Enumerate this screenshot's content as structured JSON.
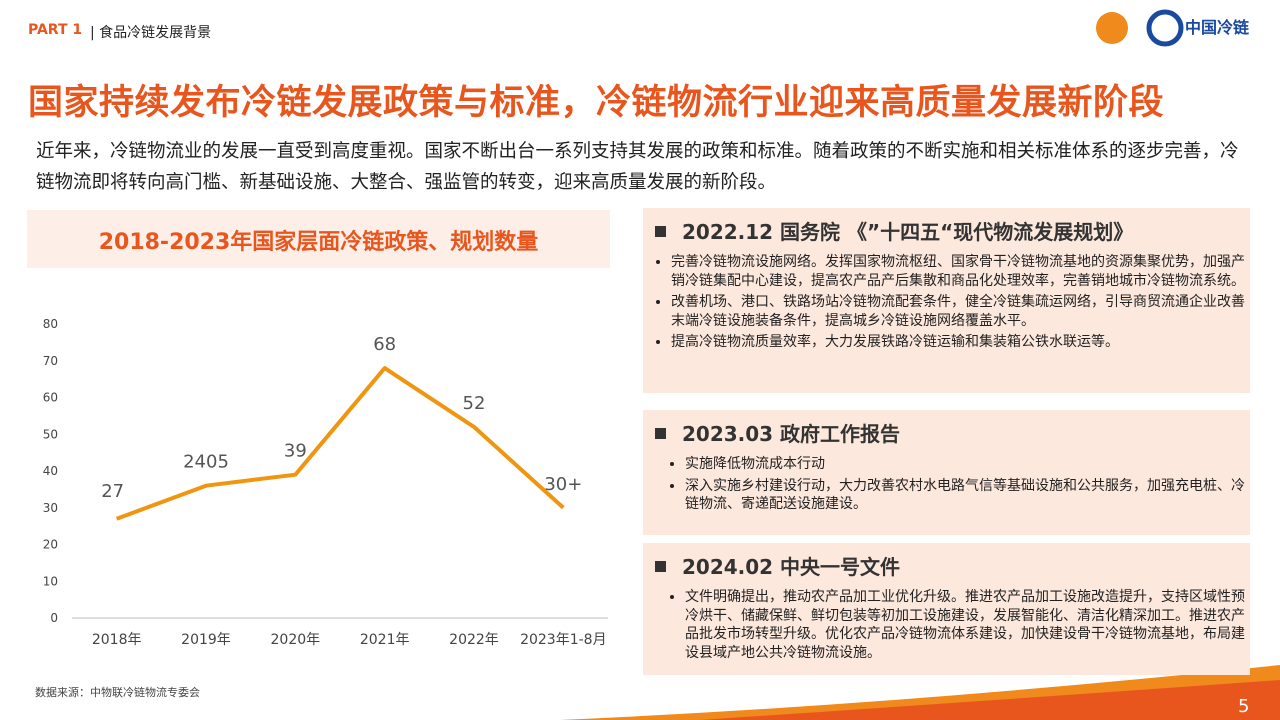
{
  "header": {
    "part": "PART 1",
    "section": "| 食品冷链发展背景",
    "logo": "中国冷链"
  },
  "title": "国家持续发布冷链发展政策与标准，冷链物流行业迎来高质量发展新阶段",
  "intro": "近年来，冷链物流业的发展一直受到高度重视。国家不断出台一系列支持其发展的政策和标准。随着政策的不断实施和相关标准体系的逐步完善，冷链物流即将转向高门槛、新基础设施、大整合、强监管的转变，迎来高质量发展的新阶段。",
  "chart_data": {
    "type": "line",
    "title": "2018-2023年国家层面冷链政策、规划数量",
    "categories": [
      "2018年",
      "2019年",
      "2020年",
      "2021年",
      "2022年",
      "2023年1-8月"
    ],
    "values": [
      27,
      36,
      39,
      68,
      52,
      30
    ],
    "value_labels": [
      "27",
      null,
      "39",
      "68",
      "52",
      "30+"
    ],
    "annotations": [
      "2405"
    ],
    "color": "#f0950f",
    "ylim": [
      0,
      80
    ],
    "yticks": [
      0,
      10,
      20,
      30,
      40,
      50,
      60,
      70,
      80
    ],
    "grid": false
  },
  "panels": [
    {
      "title": "2022.12  国务院 《”十四五“现代物流发展规划》",
      "bullets": [
        "完善冷链物流设施网络。发挥国家物流枢纽、国家骨干冷链物流基地的资源集聚优势，加强产销冷链集配中心建设，提高农产品产后集散和商品化处理效率，完善销地城市冷链物流系统。",
        "改善机场、港口、铁路场站冷链物流配套条件，健全冷链集疏运网络，引导商贸流通企业改善末端冷链设施装备条件，提高城乡冷链设施网络覆盖水平。",
        "提高冷链物流质量效率，大力发展铁路冷链运输和集装箱公铁水联运等。"
      ]
    },
    {
      "title": "2023.03  政府工作报告",
      "bullets": [
        "实施降低物流成本行动",
        "深入实施乡村建设行动，大力改善农村水电路气信等基础设施和公共服务，加强充电桩、冷链物流、寄递配送设施建设。"
      ]
    },
    {
      "title": "2024.02  中央一号文件",
      "bullets": [
        "文件明确提出，推动农产品加工业优化升级。推进农产品加工设施改造提升，支持区域性预冷烘干、储藏保鲜、鲜切包装等初加工设施建设，发展智能化、清洁化精深加工。推进农产品批发市场转型升级。优化农产品冷链物流体系建设，加快建设骨干冷链物流基地，布局建设县域产地公共冷链物流设施。"
      ]
    }
  ],
  "source": "数据来源：中物联冷链物流专委会",
  "page_number": "5"
}
